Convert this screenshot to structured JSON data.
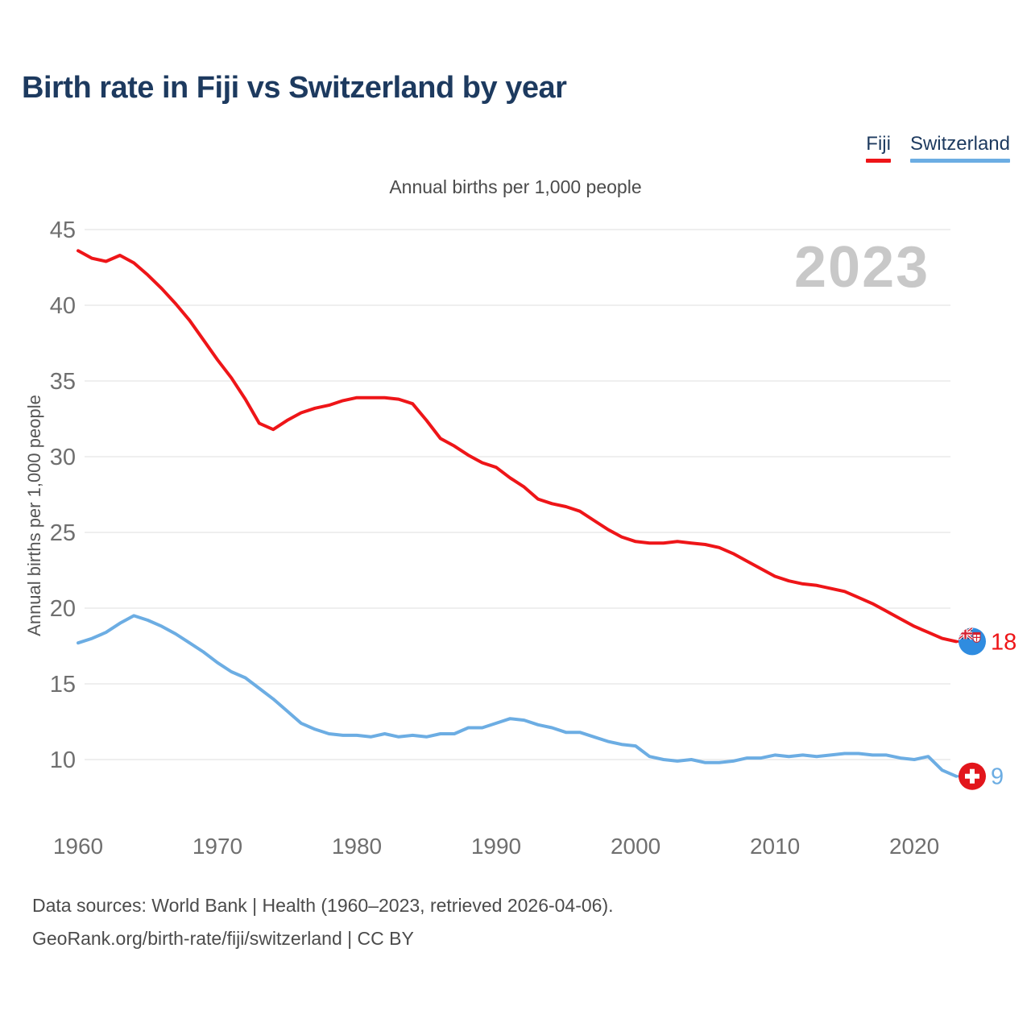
{
  "title": "Birth rate in Fiji vs Switzerland by year",
  "subtitle": "Annual births per 1,000 people",
  "y_axis_title": "Annual births per 1,000 people",
  "watermark": "2023",
  "legend": [
    {
      "label": "Fiji",
      "color": "#ee1518"
    },
    {
      "label": "Switzerland",
      "color": "#6cade3"
    }
  ],
  "footer": {
    "line1": "Data sources: World Bank | Health (1960–2023, retrieved 2026-04-06).",
    "line2": "GeoRank.org/birth-rate/fiji/switzerland | CC BY"
  },
  "colors": {
    "title_navy": "#1d3a5f",
    "tick_gray": "#6f6f6f",
    "gridline": "#eaeaea",
    "watermark_gray": "#c8c8c8",
    "fiji_flag_blue": "#2f8ce0",
    "swiss_flag_red": "#e2161c"
  },
  "chart_data": {
    "type": "line",
    "title": "Birth rate in Fiji vs Switzerland by year",
    "subtitle": "Annual births per 1,000 people",
    "ylabel": "Annual births per 1,000 people",
    "xlabel": "",
    "grid": true,
    "legend_position": "top-right",
    "xlim": [
      1960,
      2023
    ],
    "ylim": [
      10,
      45
    ],
    "xticks": [
      1960,
      1970,
      1980,
      1990,
      2000,
      2010,
      2020
    ],
    "yticks": [
      10,
      15,
      20,
      25,
      30,
      35,
      40,
      45
    ],
    "x": [
      1960,
      1961,
      1962,
      1963,
      1964,
      1965,
      1966,
      1967,
      1968,
      1969,
      1970,
      1971,
      1972,
      1973,
      1974,
      1975,
      1976,
      1977,
      1978,
      1979,
      1980,
      1981,
      1982,
      1983,
      1984,
      1985,
      1986,
      1987,
      1988,
      1989,
      1990,
      1991,
      1992,
      1993,
      1994,
      1995,
      1996,
      1997,
      1998,
      1999,
      2000,
      2001,
      2002,
      2003,
      2004,
      2005,
      2006,
      2007,
      2008,
      2009,
      2010,
      2011,
      2012,
      2013,
      2014,
      2015,
      2016,
      2017,
      2018,
      2019,
      2020,
      2021,
      2022,
      2023
    ],
    "series": [
      {
        "id": "fiji",
        "name": "Fiji",
        "color": "#ee1518",
        "end_label": "18",
        "flag": "fiji-flag",
        "values": [
          43.6,
          43.1,
          42.9,
          43.3,
          42.8,
          42.0,
          41.1,
          40.1,
          39.0,
          37.7,
          36.4,
          35.2,
          33.8,
          32.2,
          31.8,
          32.4,
          32.9,
          33.2,
          33.4,
          33.7,
          33.9,
          33.9,
          33.9,
          33.8,
          33.5,
          32.4,
          31.2,
          30.7,
          30.1,
          29.6,
          29.3,
          28.6,
          28.0,
          27.2,
          26.9,
          26.7,
          26.4,
          25.8,
          25.2,
          24.7,
          24.4,
          24.3,
          24.3,
          24.4,
          24.3,
          24.2,
          24.0,
          23.6,
          23.1,
          22.6,
          22.1,
          21.8,
          21.6,
          21.5,
          21.3,
          21.1,
          20.7,
          20.3,
          19.8,
          19.3,
          18.8,
          18.4,
          18.0,
          17.8
        ]
      },
      {
        "id": "switzerland",
        "name": "Switzerland",
        "color": "#6cade3",
        "end_label": "9",
        "flag": "switzerland-flag",
        "values": [
          17.7,
          18.0,
          18.4,
          19.0,
          19.5,
          19.2,
          18.8,
          18.3,
          17.7,
          17.1,
          16.4,
          15.8,
          15.4,
          14.7,
          14.0,
          13.2,
          12.4,
          12.0,
          11.7,
          11.6,
          11.6,
          11.5,
          11.7,
          11.5,
          11.6,
          11.5,
          11.7,
          11.7,
          12.1,
          12.1,
          12.4,
          12.7,
          12.6,
          12.3,
          12.1,
          11.8,
          11.8,
          11.5,
          11.2,
          11.0,
          10.9,
          10.2,
          10.0,
          9.9,
          10.0,
          9.8,
          9.8,
          9.9,
          10.1,
          10.1,
          10.3,
          10.2,
          10.3,
          10.2,
          10.3,
          10.4,
          10.4,
          10.3,
          10.3,
          10.1,
          10.0,
          10.2,
          9.3,
          8.9
        ]
      }
    ]
  }
}
